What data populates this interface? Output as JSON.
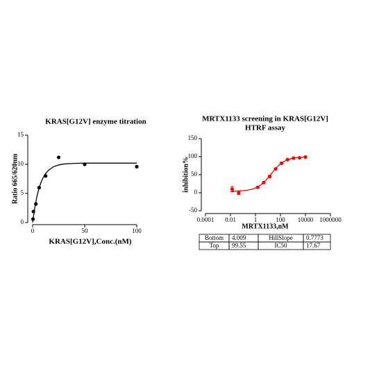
{
  "chart_data": [
    {
      "type": "scatter",
      "title": "KRAS[G12V] enzyme titration",
      "y_label": "Ratio 665/620nm",
      "x_label": "KRAS[G12V],Conc.(nM)",
      "x": [
        0.39,
        0.78,
        3.125,
        6.25,
        12.5,
        25,
        50,
        100
      ],
      "values": [
        0.6,
        1.9,
        3.2,
        6.0,
        8.0,
        11.2,
        10.0,
        9.6
      ],
      "color": "#000000",
      "fit": {
        "x": [
          0,
          2,
          4,
          6,
          8,
          10,
          12,
          15,
          20,
          25,
          30,
          40,
          50,
          75,
          100
        ],
        "values": [
          0,
          2.49,
          4.37,
          5.8,
          6.87,
          7.68,
          8.3,
          8.95,
          9.58,
          9.89,
          10.05,
          10.16,
          10.2,
          10.2,
          10.2
        ]
      },
      "xlim": [
        0,
        100
      ],
      "xticks": [
        0,
        50,
        100
      ],
      "ylim": [
        0,
        15
      ],
      "yticks": [
        0,
        5,
        10,
        15
      ]
    },
    {
      "type": "scatter",
      "title": [
        "MRTX1133 screening in KRAS[G12V]",
        "HTRF assay"
      ],
      "y_label": "inhibition%",
      "x_label": "MRTX1133,nM",
      "x": [
        0.0137,
        0.0457,
        1.52,
        4.57,
        13.7,
        41.2,
        123,
        370,
        1111,
        3333,
        10000
      ],
      "values": [
        10,
        0,
        15,
        28,
        45,
        66,
        82,
        92,
        96,
        97,
        99
      ],
      "errors": [
        7,
        5,
        2,
        2,
        3,
        2,
        2,
        1,
        1,
        1,
        1
      ],
      "color": "#ff0000",
      "log_x": true,
      "xlim": [
        0.0001,
        1000000
      ],
      "xticks": [
        0.0001,
        0.01,
        1,
        100,
        10000,
        1000000
      ],
      "ylim": [
        -50,
        150
      ],
      "yticks": [
        -50,
        0,
        50,
        100,
        150
      ]
    }
  ],
  "table": {
    "rows": [
      [
        "Bottom",
        4.009,
        "HillSlope",
        0.7773
      ],
      [
        "Top",
        99.55,
        "IC50",
        17.67
      ]
    ]
  }
}
